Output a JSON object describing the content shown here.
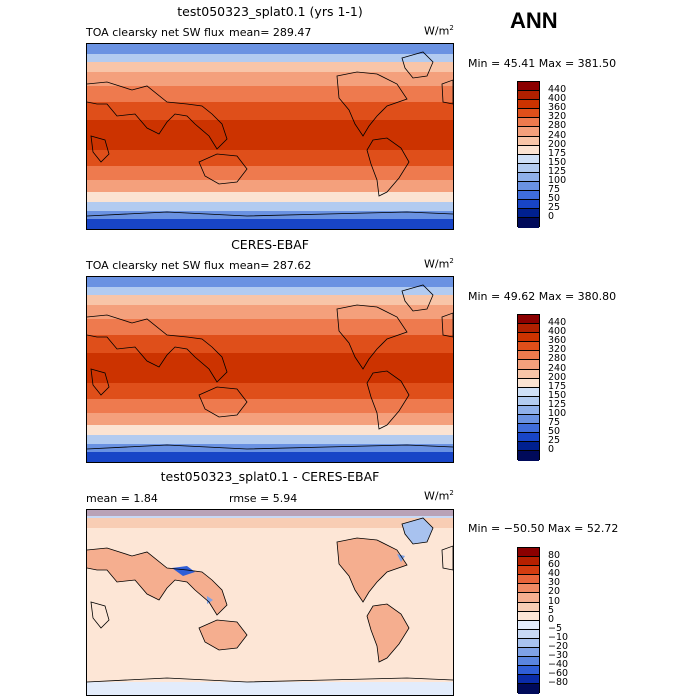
{
  "season": "ANN",
  "panels": [
    {
      "title": "test050323_splat0.1 (yrs 1-1)",
      "variable": "TOA clearsky net SW flux",
      "mean_text": "mean=  289.47",
      "units_base": "W/m",
      "units_exp": "2",
      "minmax": "Min =  45.41 Max = 381.50",
      "chart_data": {
        "type": "heatmap",
        "title": "test050323_splat0.1 (yrs 1-1)",
        "variable": "TOA clearsky net SW flux",
        "units": "W/m2",
        "mean": 289.47,
        "min": 45.41,
        "max": 381.5,
        "levels": [
          0,
          25,
          50,
          75,
          100,
          125,
          150,
          175,
          200,
          240,
          280,
          320,
          360,
          400,
          440
        ]
      },
      "colorbar": [
        "440",
        "400",
        "360",
        "320",
        "280",
        "240",
        "200",
        "175",
        "150",
        "125",
        "100",
        "75",
        "50",
        "25",
        "0"
      ]
    },
    {
      "title": "CERES-EBAF",
      "variable": "TOA clearsky net SW flux",
      "mean_text": "mean=  287.62",
      "units_base": "W/m",
      "units_exp": "2",
      "minmax": "Min =  49.62 Max = 380.80",
      "chart_data": {
        "type": "heatmap",
        "title": "CERES-EBAF",
        "variable": "TOA clearsky net SW flux",
        "units": "W/m2",
        "mean": 287.62,
        "min": 49.62,
        "max": 380.8,
        "levels": [
          0,
          25,
          50,
          75,
          100,
          125,
          150,
          175,
          200,
          240,
          280,
          320,
          360,
          400,
          440
        ]
      },
      "colorbar": [
        "440",
        "400",
        "360",
        "320",
        "280",
        "240",
        "200",
        "175",
        "150",
        "125",
        "100",
        "75",
        "50",
        "25",
        "0"
      ]
    },
    {
      "title": "test050323_splat0.1 - CERES-EBAF",
      "mean_text": "mean =    1.84",
      "rmse_text": "rmse =    5.94",
      "units_base": "W/m",
      "units_exp": "2",
      "minmax": "Min = −50.50 Max =  52.72",
      "chart_data": {
        "type": "heatmap",
        "title": "test050323_splat0.1 - CERES-EBAF",
        "units": "W/m2",
        "mean": 1.84,
        "rmse": 5.94,
        "min": -50.5,
        "max": 52.72,
        "levels": [
          -80,
          -60,
          -40,
          -30,
          -20,
          -10,
          -5,
          0,
          5,
          10,
          20,
          30,
          40,
          60,
          80
        ]
      },
      "colorbar": [
        "80",
        "60",
        "40",
        "30",
        "20",
        "10",
        "5",
        "0",
        "−5",
        "−10",
        "−20",
        "−30",
        "−40",
        "−60",
        "−80"
      ]
    }
  ],
  "colors": {
    "full_field": [
      "#8b0000",
      "#b02000",
      "#cc3300",
      "#df4f1a",
      "#ee7a4e",
      "#f4a07c",
      "#f8c5a8",
      "#fbe3d2",
      "#cfe0f7",
      "#b2cbf0",
      "#8fb0ea",
      "#6a92e2",
      "#3f6ddb",
      "#1845c7",
      "#00208f",
      "#000a5a"
    ],
    "diff_field": [
      "#8b0000",
      "#b52000",
      "#d33c10",
      "#e8643a",
      "#f08a64",
      "#f5ae8f",
      "#f8cdb4",
      "#fde6d6",
      "#e3ecfb",
      "#c8d9f5",
      "#a8c2ef",
      "#7fa2e7",
      "#5a85e0",
      "#2f5ed7",
      "#0a2ba8",
      "#000a5a"
    ]
  }
}
